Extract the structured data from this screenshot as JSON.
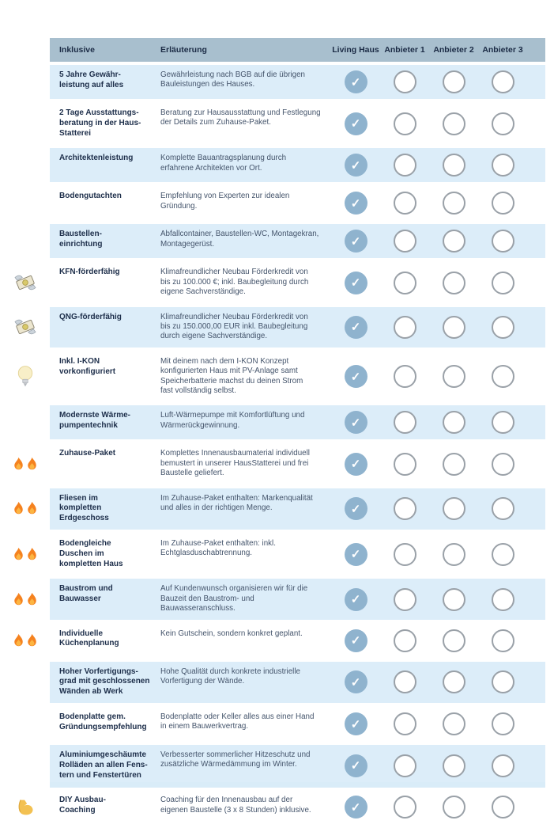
{
  "table": {
    "columns": [
      "Inklusive",
      "Erläuterung",
      "Living Haus",
      "Anbieter 1",
      "Anbieter 2",
      "Anbieter 3"
    ],
    "check_glyph": "✓",
    "rows": [
      {
        "icons": [],
        "name": "5 Jahre Gewähr-\nleistung auf alles",
        "description": "Gewährleistung nach BGB auf die übrigen\nBauleistungen des Hauses.",
        "checks": [
          true,
          false,
          false,
          false
        ]
      },
      {
        "icons": [],
        "name": "2 Tage Ausstattungs-\nberatung in der Haus-\nStatterei",
        "description": "Beratung zur Hausausstattung und Festlegung\nder Details zum Zuhause-Paket.",
        "checks": [
          true,
          false,
          false,
          false
        ]
      },
      {
        "icons": [],
        "name": "Architektenleistung",
        "description": "Komplette Bauantragsplanung durch\nerfahrene Architekten vor Ort.",
        "checks": [
          true,
          false,
          false,
          false
        ]
      },
      {
        "icons": [],
        "name": "Bodengutachten",
        "description": "Empfehlung von Experten zur idealen Gründung.",
        "checks": [
          true,
          false,
          false,
          false
        ]
      },
      {
        "icons": [],
        "name": "Baustellen-\neinrichtung",
        "description": "Abfallcontainer, Baustellen-WC, Montagekran,\nMontagegerüst.",
        "checks": [
          true,
          false,
          false,
          false
        ]
      },
      {
        "icons": [
          "money-wings-icon"
        ],
        "name": "KFN-förderfähig",
        "description": "Klimafreundlicher Neubau Förderkredit von\nbis zu 100.000 €; inkl. Baubegleitung durch\neigene Sachverständige.",
        "checks": [
          true,
          false,
          false,
          false
        ]
      },
      {
        "icons": [
          "money-wings-icon"
        ],
        "name": "QNG-förderfähig",
        "description": "Klimafreundlicher Neubau Förderkredit von\nbis zu 150.000,00 EUR inkl. Baubegleitung\ndurch eigene Sachverständige.",
        "checks": [
          true,
          false,
          false,
          false
        ]
      },
      {
        "icons": [
          "bulb-icon"
        ],
        "name": "Inkl. I-KON\nvorkonfiguriert",
        "description": "Mit deinem nach dem I-KON Konzept\nkonfigurierten Haus mit PV-Anlage samt\nSpeicherbatterie machst du deinen Strom\nfast vollständig selbst.",
        "checks": [
          true,
          false,
          false,
          false
        ]
      },
      {
        "icons": [],
        "name": "Modernste Wärme-\npumpentechnik",
        "description": "Luft-Wärmepumpe mit Komfortlüftung und\nWärmerückgewinnung.",
        "checks": [
          true,
          false,
          false,
          false
        ]
      },
      {
        "icons": [
          "fire-icon",
          "fire-icon"
        ],
        "name": "Zuhause-Paket",
        "description": "Komplettes Innenausbaumaterial individuell\nbemustert in unserer HausStatterei und frei\nBaustelle geliefert.",
        "checks": [
          true,
          false,
          false,
          false
        ]
      },
      {
        "icons": [
          "fire-icon",
          "fire-icon"
        ],
        "name": "Fliesen im\nkompletten\nErdgeschoss",
        "description": "Im Zuhause-Paket enthalten: Markenqualität\nund alles in der richtigen Menge.",
        "checks": [
          true,
          false,
          false,
          false
        ]
      },
      {
        "icons": [
          "fire-icon",
          "fire-icon"
        ],
        "name": "Bodengleiche\nDuschen im\nkompletten Haus",
        "description": "Im Zuhause-Paket enthalten: inkl.\nEchtglasduschabtrennung.",
        "checks": [
          true,
          false,
          false,
          false
        ]
      },
      {
        "icons": [
          "fire-icon",
          "fire-icon"
        ],
        "name": "Baustrom und\nBauwasser",
        "description": "Auf Kundenwunsch organisieren wir für die\nBauzeit den Baustrom- und Bauwasseranschluss.",
        "checks": [
          true,
          false,
          false,
          false
        ]
      },
      {
        "icons": [
          "fire-icon",
          "fire-icon"
        ],
        "name": "Individuelle\nKüchenplanung",
        "description": "Kein Gutschein, sondern konkret geplant.",
        "checks": [
          true,
          false,
          false,
          false
        ]
      },
      {
        "icons": [],
        "name": "Hoher Vorfertigungs-\ngrad mit geschlossenen\nWänden ab Werk",
        "description": "Hohe Qualität durch konkrete industrielle\nVorfertigung der Wände.",
        "checks": [
          true,
          false,
          false,
          false
        ]
      },
      {
        "icons": [],
        "name": "Bodenplatte gem.\nGründungsempfehlung",
        "description": "Bodenplatte oder Keller alles aus einer Hand\nin einem Bauwerkvertrag.",
        "checks": [
          true,
          false,
          false,
          false
        ]
      },
      {
        "icons": [],
        "name": "Aluminiumgeschäumte\nRolläden an allen Fens-\ntern und Fenstertüren",
        "description": "Verbesserter sommerlicher Hitzeschutz und\nzusätzliche Wärmedämmung im Winter.",
        "checks": [
          true,
          false,
          false,
          false
        ]
      },
      {
        "icons": [
          "biceps-icon"
        ],
        "name": "DIY Ausbau-\nCoaching",
        "description": "Coaching für den Innenausbau auf der\neigenen Baustelle (3 x 8 Stunden) inklusive.",
        "checks": [
          true,
          false,
          false,
          false
        ]
      }
    ]
  },
  "colors": {
    "header_bg": "#a8bfce",
    "row_blue_bg": "#dcedf9",
    "row_white_bg": "#ffffff",
    "check_fill": "#8fb3ce",
    "empty_border": "#9aa1a8",
    "name_text": "#1d2e4a",
    "desc_text": "#44546b",
    "header_text": "#1b2b45"
  }
}
